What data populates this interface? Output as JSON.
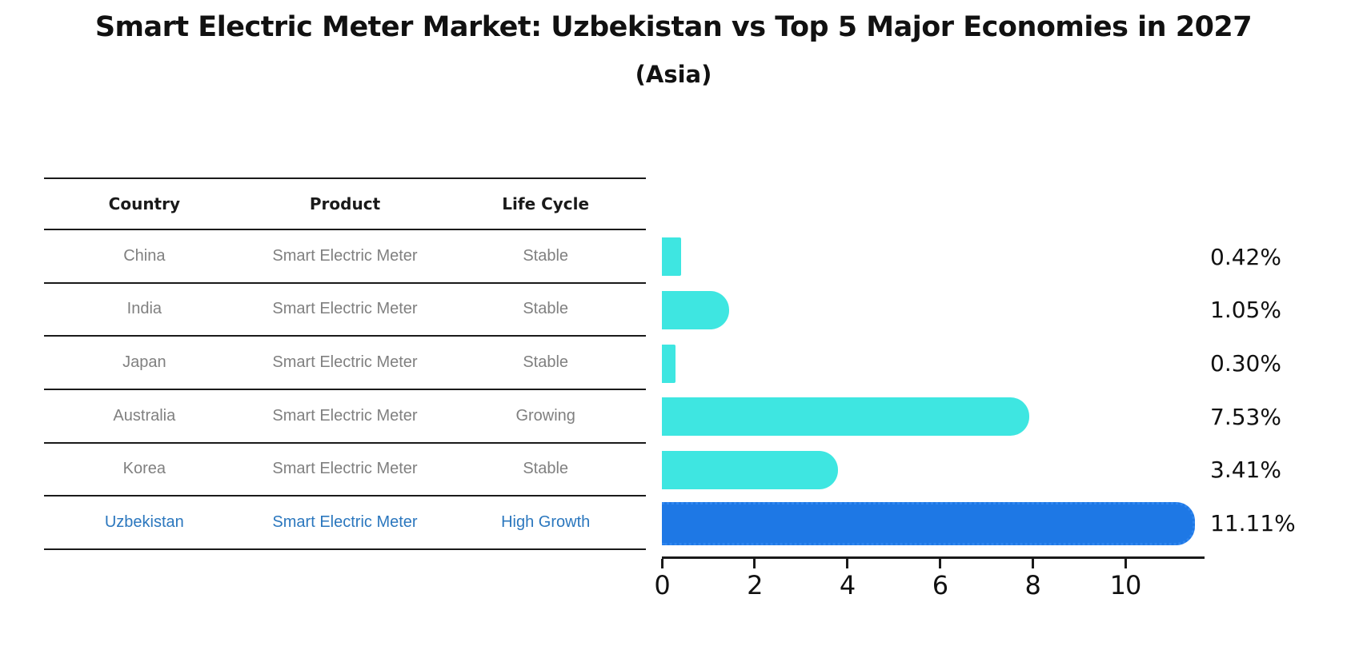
{
  "title": "Smart Electric Meter Market: Uzbekistan vs Top 5 Major Economies in 2027",
  "subtitle": "(Asia)",
  "table": {
    "headers": [
      "Country",
      "Product",
      "Life Cycle"
    ],
    "rows": [
      {
        "country": "China",
        "product": "Smart Electric Meter",
        "life_cycle": "Stable",
        "highlight": false
      },
      {
        "country": "India",
        "product": "Smart Electric Meter",
        "life_cycle": "Stable",
        "highlight": false
      },
      {
        "country": "Japan",
        "product": "Smart Electric Meter",
        "life_cycle": "Stable",
        "highlight": false
      },
      {
        "country": "Australia",
        "product": "Smart Electric Meter",
        "life_cycle": "Growing",
        "highlight": false
      },
      {
        "country": "Korea",
        "product": "Smart Electric Meter",
        "life_cycle": "Stable",
        "highlight": false
      },
      {
        "country": "Uzbekistan",
        "product": "Smart Electric Meter",
        "life_cycle": "High Growth",
        "highlight": true
      }
    ]
  },
  "chart_data": {
    "type": "bar",
    "orientation": "horizontal",
    "title": "Smart Electric Meter Market: Uzbekistan vs Top 5 Major Economies in 2027",
    "subtitle": "(Asia)",
    "categories": [
      "China",
      "India",
      "Japan",
      "Australia",
      "Korea",
      "Uzbekistan"
    ],
    "values": [
      0.42,
      1.05,
      0.3,
      7.53,
      3.41,
      11.11
    ],
    "value_labels": [
      "0.42%",
      "1.05%",
      "0.30%",
      "7.53%",
      "3.41%",
      "11.11%"
    ],
    "x_ticks": [
      0,
      2,
      4,
      6,
      8,
      10
    ],
    "xlim": [
      0,
      11.71
    ],
    "grid": false,
    "legend": false,
    "highlight_index": 5
  },
  "colors": {
    "bar_cyan": "#3ee6e1",
    "bar_blue": "#1e78e5",
    "bar_blue_dot_edge": "#2f86f0",
    "table_text_gray": "#808080",
    "highlight_text_blue": "#2b77be",
    "axis_black": "#1a1a1a"
  }
}
